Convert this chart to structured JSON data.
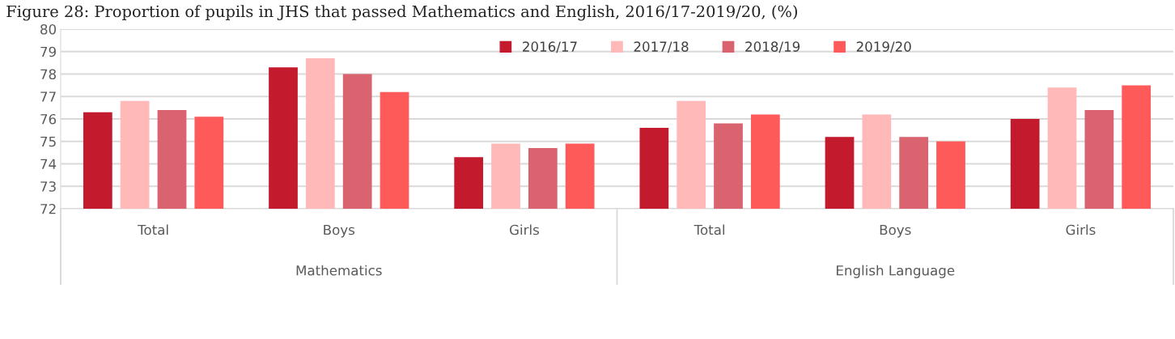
{
  "chart_data": {
    "type": "bar",
    "title": "Figure 28: Proportion of pupils in JHS that passed Mathematics and English, 2016/17-2019/20, (%)",
    "categories": [
      "Total",
      "Boys",
      "Girls",
      "Total",
      "Boys",
      "Girls"
    ],
    "series": [
      {
        "name": "2016/17",
        "color": "#c41a2e",
        "values": [
          76.3,
          78.3,
          74.3,
          75.6,
          75.2,
          76.0
        ]
      },
      {
        "name": "2017/18",
        "color": "#ffb9b9",
        "values": [
          76.8,
          78.7,
          74.9,
          76.8,
          76.2,
          77.4
        ]
      },
      {
        "name": "2018/19",
        "color": "#d9636f",
        "values": [
          76.4,
          78.0,
          74.7,
          75.8,
          75.2,
          76.4
        ]
      },
      {
        "name": "2019/20",
        "color": "#ff5a5a",
        "values": [
          76.1,
          77.2,
          74.9,
          76.2,
          75.0,
          77.5
        ]
      }
    ],
    "annotations": [
      "Mathematics",
      "English Language"
    ],
    "ylim": [
      72,
      80
    ],
    "yticks": [
      72,
      73,
      74,
      75,
      76,
      77,
      78,
      79,
      80
    ],
    "grid": "y",
    "legend": "top"
  }
}
